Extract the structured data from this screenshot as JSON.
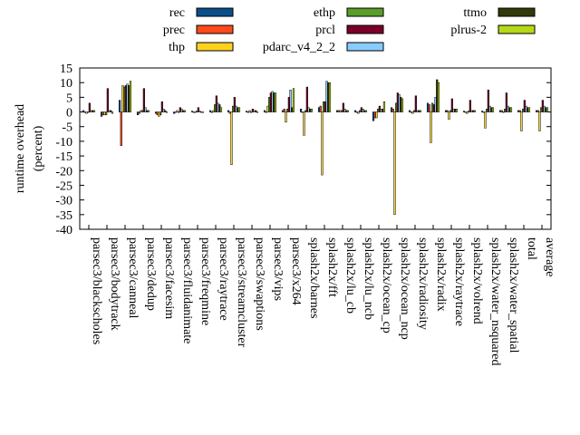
{
  "chart_data": {
    "type": "bar",
    "ylabel": "runtime overhead\n(percent)",
    "ylim": [
      -40,
      15
    ],
    "yticks": [
      15,
      10,
      5,
      0,
      -5,
      -10,
      -15,
      -20,
      -25,
      -30,
      -35,
      -40
    ],
    "grid": false,
    "legend_position": "top",
    "categories": [
      "parsec3/blackscholes",
      "parsec3/bodytrack",
      "parsec3/canneal",
      "parsec3/dedup",
      "parsec3/facesim",
      "parsec3/fluidanimate",
      "parsec3/freqmine",
      "parsec3/raytrace",
      "parsec3/streamcluster",
      "parsec3/swaptions",
      "parsec3/vips",
      "parsec3/x264",
      "splash2x/barnes",
      "splash2x/fft",
      "splash2x/lu_cb",
      "splash2x/lu_ncb",
      "splash2x/ocean_cp",
      "splash2x/ocean_ncp",
      "splash2x/radiosity",
      "splash2x/radix",
      "splash2x/raytrace",
      "splash2x/volrend",
      "splash2x/water_nsquared",
      "splash2x/water_spatial",
      "total",
      "average"
    ],
    "series": [
      {
        "name": "rec",
        "color": "#0b4f8a",
        "values": [
          0.5,
          -1.5,
          4,
          -1,
          -0.5,
          -0.5,
          0.3,
          0.5,
          0.5,
          0.3,
          0.5,
          0.5,
          1,
          1.5,
          0.5,
          0.5,
          -3,
          1.5,
          0.5,
          3,
          0.5,
          0.3,
          0.3,
          0.5,
          0.5,
          0.5
        ]
      },
      {
        "name": "prec",
        "color": "#ff4a1c",
        "values": [
          0,
          -1,
          -11.5,
          -0.5,
          -1,
          0,
          0,
          0,
          -0.5,
          0,
          0,
          1,
          0,
          2,
          0.5,
          0,
          -2,
          1,
          0,
          2.5,
          0.5,
          0,
          0,
          0.5,
          0.5,
          0.5
        ]
      },
      {
        "name": "thp",
        "color": "#ffd21f",
        "values": [
          -0.5,
          -1,
          9,
          0.5,
          -1.5,
          0.5,
          0,
          0.5,
          -18,
          0.5,
          2,
          -3.5,
          -8,
          -21.5,
          0.5,
          -0.5,
          -2,
          -35,
          -0.5,
          -10.5,
          -2.5,
          -0.5,
          -5.5,
          0,
          -6.5,
          -6.5
        ]
      },
      {
        "name": "ethp",
        "color": "#5a9e2a",
        "values": [
          0,
          -1,
          8.5,
          0.5,
          -1,
          0,
          0.3,
          2.5,
          2,
          0,
          5,
          1,
          0.5,
          3.5,
          0.5,
          0.5,
          1,
          3,
          0.5,
          3,
          0.5,
          0.3,
          1,
          1,
          1,
          1.5
        ]
      },
      {
        "name": "prcl",
        "color": "#7a0027",
        "values": [
          3,
          8,
          9,
          8,
          3.5,
          1.5,
          1.5,
          5.5,
          5,
          1,
          6.5,
          5,
          8.5,
          3.5,
          3,
          1.5,
          2,
          6.5,
          5.5,
          2.5,
          4.5,
          4,
          7.5,
          6.5,
          4,
          4
        ]
      },
      {
        "name": "pdarc_v4_2_2",
        "color": "#88ccff",
        "values": [
          0.5,
          0.5,
          9.5,
          1.5,
          1,
          1,
          0.3,
          3,
          2,
          0.5,
          7,
          7.5,
          1.5,
          10.5,
          1,
          1,
          1,
          6,
          0.5,
          5,
          1,
          0.5,
          2,
          2,
          2,
          2
        ]
      },
      {
        "name": "ttmo",
        "color": "#333a09",
        "values": [
          0.5,
          0.5,
          9,
          0.5,
          0.5,
          0.5,
          0,
          2.5,
          1.5,
          0.5,
          6.5,
          1.5,
          1,
          10,
          0.5,
          0.5,
          1,
          5,
          0.5,
          11,
          1,
          0.5,
          1.5,
          1.5,
          1.5,
          1.5
        ]
      },
      {
        "name": "plrus-2",
        "color": "#b5d917",
        "values": [
          0.5,
          -0.5,
          10.5,
          0.5,
          0,
          0.5,
          0,
          1.5,
          1.5,
          0,
          6.5,
          8,
          1,
          10,
          0.5,
          0.5,
          3.5,
          4.5,
          0.5,
          10,
          1,
          0.5,
          1.5,
          1.5,
          1.5,
          1.5
        ]
      }
    ]
  }
}
